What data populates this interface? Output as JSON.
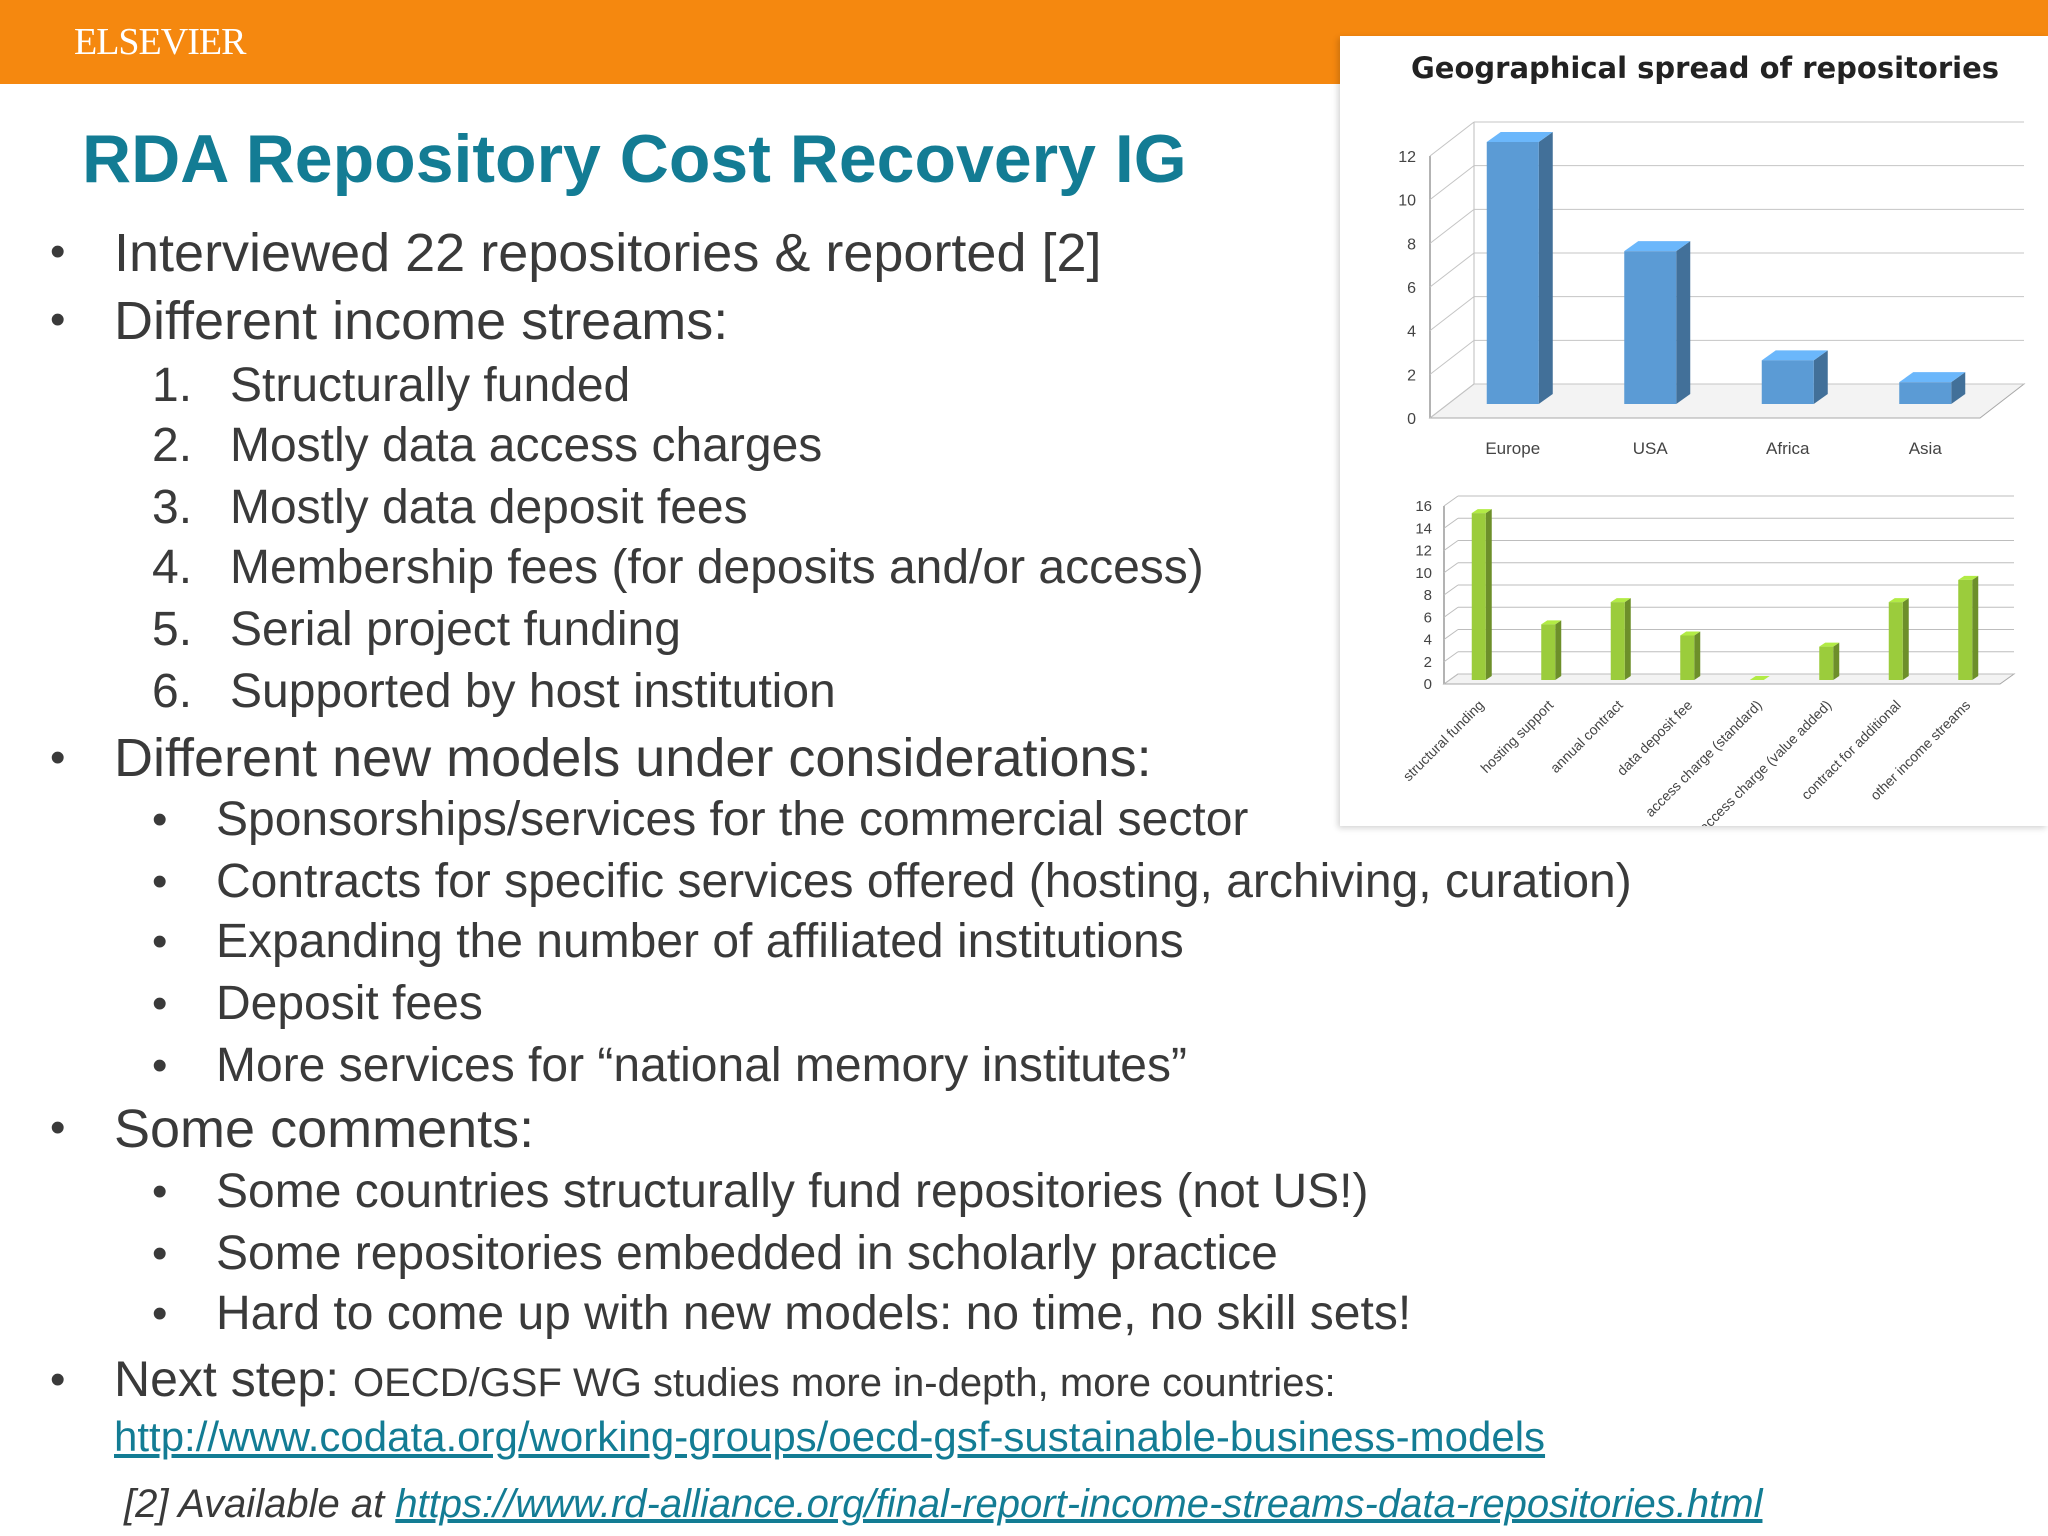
{
  "header": {
    "brand": "ELSEVIER"
  },
  "slide": {
    "title": "RDA Repository Cost Recovery IG",
    "bullets": [
      "Interviewed 22 repositories & reported [2]",
      "Different income streams:"
    ],
    "income_streams": [
      {
        "num": "1.",
        "text": "Structurally funded"
      },
      {
        "num": "2.",
        "text": "Mostly data access charges"
      },
      {
        "num": "3.",
        "text": "Mostly data deposit fees"
      },
      {
        "num": "4.",
        "text": "Membership fees (for deposits and/or access)"
      },
      {
        "num": "5.",
        "text": "Serial project funding"
      },
      {
        "num": "6.",
        "text": "Supported by host institution"
      }
    ],
    "new_models_heading": "Different new models under considerations:",
    "new_models": [
      "Sponsorships/services for the commercial sector",
      "Contracts for specific services offered (hosting, archiving, curation)",
      "Expanding the number of affiliated institutions",
      "Deposit fees",
      "More services for “national memory institutes”"
    ],
    "comments_heading": "Some comments:",
    "comments": [
      "Some countries structurally fund repositories (not US!)",
      "Some repositories embedded in scholarly practice",
      "Hard to come up with new models: no time, no skill sets!"
    ],
    "next_step": {
      "label": "Next step:",
      "text": "OECD/GSF WG studies more in-depth, more countries:",
      "url": "http://www.codata.org/working-groups/oecd-gsf-sustainable-business-models"
    },
    "footnote": {
      "prefix": "[2] Available at",
      "url": "https://www.rd-alliance.org/final-report-income-streams-data-repositories.html"
    }
  },
  "chart_data": [
    {
      "type": "bar",
      "title": "Geographical spread of repositories",
      "categories": [
        "Europe",
        "USA",
        "Africa",
        "Asia"
      ],
      "values": [
        12,
        7,
        2,
        1
      ],
      "ylim": [
        0,
        12
      ],
      "yticks": [
        0,
        2,
        4,
        6,
        8,
        10,
        12
      ],
      "grid": true,
      "color": "#5b9bd5"
    },
    {
      "type": "bar",
      "title": "",
      "categories": [
        "structural funding",
        "hosting support",
        "annual contract",
        "data deposit fee",
        "access charge (standard)",
        "access charge (value added)",
        "contract for additional",
        "other income streams"
      ],
      "values": [
        15,
        5,
        7,
        4,
        0,
        3,
        7,
        9
      ],
      "ylim": [
        0,
        16
      ],
      "yticks": [
        0,
        2,
        4,
        6,
        8,
        10,
        12,
        14,
        16
      ],
      "grid": true,
      "color": "#9bcc3c"
    }
  ]
}
